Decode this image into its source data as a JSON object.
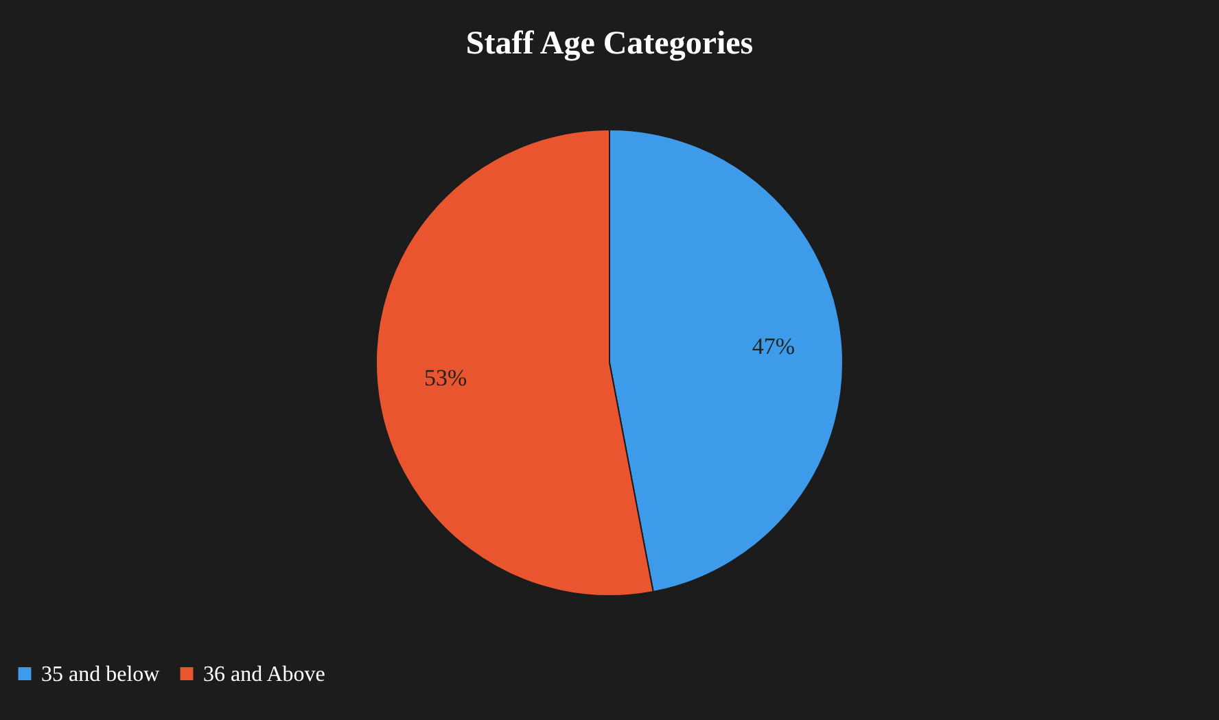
{
  "chart_data": {
    "type": "pie",
    "title": "Staff Age Categories",
    "categories": [
      "35 and below",
      "36 and Above"
    ],
    "values": [
      47,
      53
    ],
    "colors": [
      "#3d9be9",
      "#e8552e"
    ],
    "value_labels": [
      "47%",
      "53%"
    ],
    "legend": "bottom"
  }
}
